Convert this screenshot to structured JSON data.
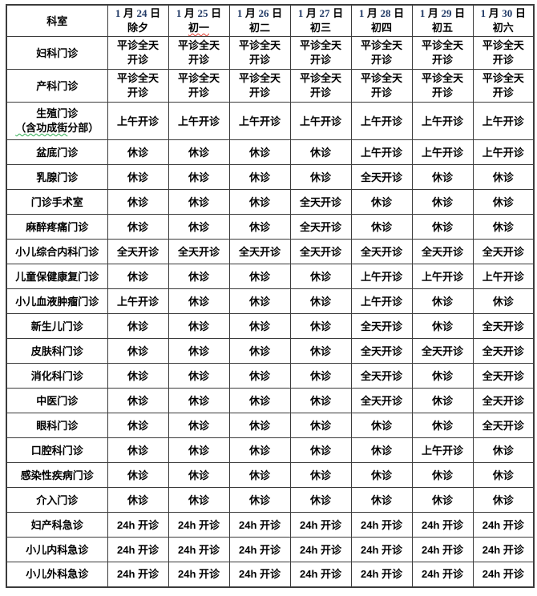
{
  "colors": {
    "text": "#000000",
    "date_number": "#1F3864",
    "border": "#3b3b3b",
    "spell_red": "#e23b2e",
    "spell_green": "#2fae52",
    "background": "#ffffff"
  },
  "table": {
    "corner_header": "科室",
    "month_char": "月",
    "day_char": "日",
    "date_columns": [
      {
        "month": "1",
        "day": "24",
        "lunar": "除夕"
      },
      {
        "month": "1",
        "day": "25",
        "lunar": "初一",
        "spellcheck": "red"
      },
      {
        "month": "1",
        "day": "26",
        "lunar": "初二"
      },
      {
        "month": "1",
        "day": "27",
        "lunar": "初三"
      },
      {
        "month": "1",
        "day": "28",
        "lunar": "初四"
      },
      {
        "month": "1",
        "day": "29",
        "lunar": "初五"
      },
      {
        "month": "1",
        "day": "30",
        "lunar": "初六"
      }
    ],
    "rows": [
      {
        "dept": "妇科门诊",
        "cells": [
          [
            "平诊全天",
            "开诊"
          ],
          [
            "平诊全天",
            "开诊"
          ],
          [
            "平诊全天",
            "开诊"
          ],
          [
            "平诊全天",
            "开诊"
          ],
          [
            "平诊全天",
            "开诊"
          ],
          [
            "平诊全天",
            "开诊"
          ],
          [
            "平诊全天",
            "开诊"
          ]
        ]
      },
      {
        "dept": "产科门诊",
        "cells": [
          [
            "平诊全天",
            "开诊"
          ],
          [
            "平诊全天",
            "开诊"
          ],
          [
            "平诊全天",
            "开诊"
          ],
          [
            "平诊全天",
            "开诊"
          ],
          [
            "平诊全天",
            "开诊"
          ],
          [
            "平诊全天",
            "开诊"
          ],
          [
            "平诊全天",
            "开诊"
          ]
        ]
      },
      {
        "dept": "生殖门诊（含功成街分部）",
        "dept_lines": [
          "生殖门诊",
          "（含功成街分部）"
        ],
        "wavy_green": "（含功成街",
        "cells": [
          "上午开诊",
          "上午开诊",
          "上午开诊",
          "上午开诊",
          "上午开诊",
          "上午开诊",
          "上午开诊"
        ]
      },
      {
        "dept": "盆底门诊",
        "cells": [
          "休诊",
          "休诊",
          "休诊",
          "休诊",
          "上午开诊",
          "上午开诊",
          "上午开诊"
        ]
      },
      {
        "dept": "乳腺门诊",
        "cells": [
          "休诊",
          "休诊",
          "休诊",
          "休诊",
          "全天开诊",
          "休诊",
          "休诊"
        ]
      },
      {
        "dept": "门诊手术室",
        "cells": [
          "休诊",
          "休诊",
          "休诊",
          "全天开诊",
          "休诊",
          "休诊",
          "休诊"
        ]
      },
      {
        "dept": "麻醉疼痛门诊",
        "cells": [
          "休诊",
          "休诊",
          "休诊",
          "全天开诊",
          "休诊",
          "休诊",
          "休诊"
        ]
      },
      {
        "dept": "小儿综合内科门诊",
        "cells": [
          "全天开诊",
          "全天开诊",
          "全天开诊",
          "全天开诊",
          "全天开诊",
          "全天开诊",
          "全天开诊"
        ]
      },
      {
        "dept": "儿童保健康复门诊",
        "cells": [
          "休诊",
          "休诊",
          "休诊",
          "休诊",
          "上午开诊",
          "上午开诊",
          "上午开诊"
        ]
      },
      {
        "dept": "小儿血液肿瘤门诊",
        "cells": [
          "上午开诊",
          "休诊",
          "休诊",
          "休诊",
          "上午开诊",
          "休诊",
          "休诊"
        ]
      },
      {
        "dept": "新生儿门诊",
        "cells": [
          "休诊",
          "休诊",
          "休诊",
          "休诊",
          "全天开诊",
          "休诊",
          "全天开诊"
        ]
      },
      {
        "dept": "皮肤科门诊",
        "cells": [
          "休诊",
          "休诊",
          "休诊",
          "休诊",
          "全天开诊",
          "全天开诊",
          "全天开诊"
        ]
      },
      {
        "dept": "消化科门诊",
        "cells": [
          "休诊",
          "休诊",
          "休诊",
          "休诊",
          "全天开诊",
          "休诊",
          "全天开诊"
        ]
      },
      {
        "dept": "中医门诊",
        "cells": [
          "休诊",
          "休诊",
          "休诊",
          "休诊",
          "全天开诊",
          "休诊",
          "全天开诊"
        ]
      },
      {
        "dept": "眼科门诊",
        "cells": [
          "休诊",
          "休诊",
          "休诊",
          "休诊",
          "休诊",
          "休诊",
          "全天开诊"
        ]
      },
      {
        "dept": "口腔科门诊",
        "cells": [
          "休诊",
          "休诊",
          "休诊",
          "休诊",
          "休诊",
          "上午开诊",
          "休诊"
        ]
      },
      {
        "dept": "感染性疾病门诊",
        "cells": [
          "休诊",
          "休诊",
          "休诊",
          "休诊",
          "休诊",
          "休诊",
          "休诊"
        ]
      },
      {
        "dept": "介入门诊",
        "cells": [
          "休诊",
          "休诊",
          "休诊",
          "休诊",
          "休诊",
          "休诊",
          "休诊"
        ]
      },
      {
        "dept": "妇产科急诊",
        "cells": [
          "24h 开诊",
          "24h 开诊",
          "24h 开诊",
          "24h 开诊",
          "24h 开诊",
          "24h 开诊",
          "24h 开诊"
        ]
      },
      {
        "dept": "小儿内科急诊",
        "cells": [
          "24h 开诊",
          "24h 开诊",
          "24h 开诊",
          "24h 开诊",
          "24h 开诊",
          "24h 开诊",
          "24h 开诊"
        ]
      },
      {
        "dept": "小儿外科急诊",
        "cells": [
          "24h 开诊",
          "24h 开诊",
          "24h 开诊",
          "24h 开诊",
          "24h 开诊",
          "24h 开诊",
          "24h 开诊"
        ]
      }
    ]
  }
}
